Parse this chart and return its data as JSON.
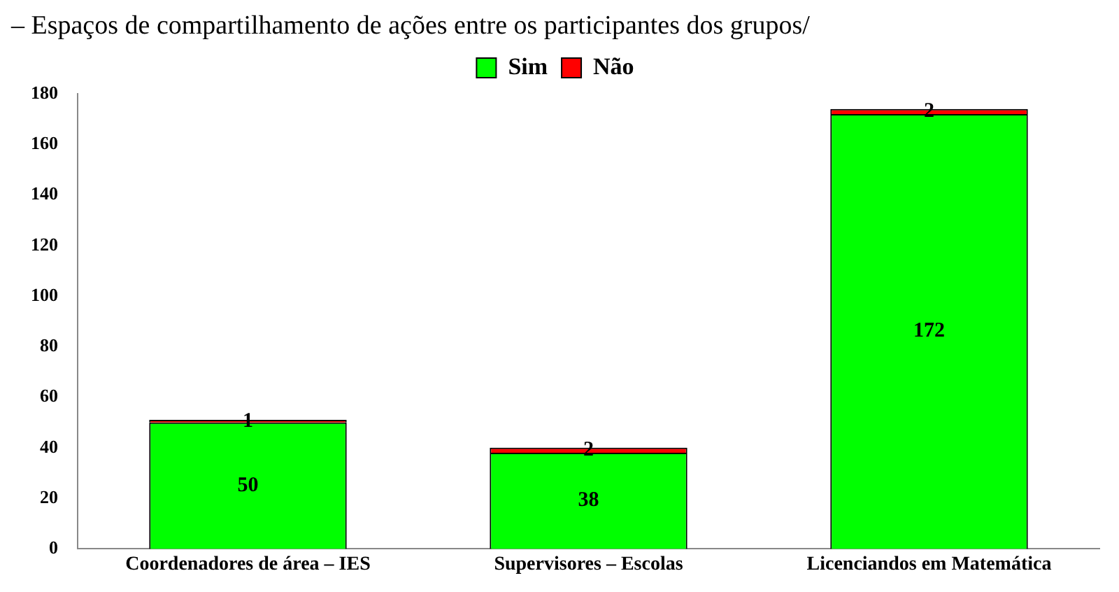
{
  "chart_data": {
    "type": "bar",
    "title": "– Espaços de compartilhamento de ações entre os participantes dos grupos/",
    "categories": [
      "Coordenadores de área – IES",
      "Supervisores – Escolas",
      "Licenciandos em Matemática"
    ],
    "stacked": true,
    "data_labels": true,
    "legend": "top",
    "grid": false,
    "ylim": [
      0,
      180
    ],
    "yticks": [
      0,
      20,
      40,
      60,
      80,
      100,
      120,
      140,
      160,
      180
    ],
    "series": [
      {
        "name": "Sim",
        "color": "#00ff00",
        "values": [
          50,
          38,
          172
        ]
      },
      {
        "name": "Não",
        "color": "#ff0000",
        "values": [
          1,
          2,
          2
        ]
      }
    ]
  }
}
